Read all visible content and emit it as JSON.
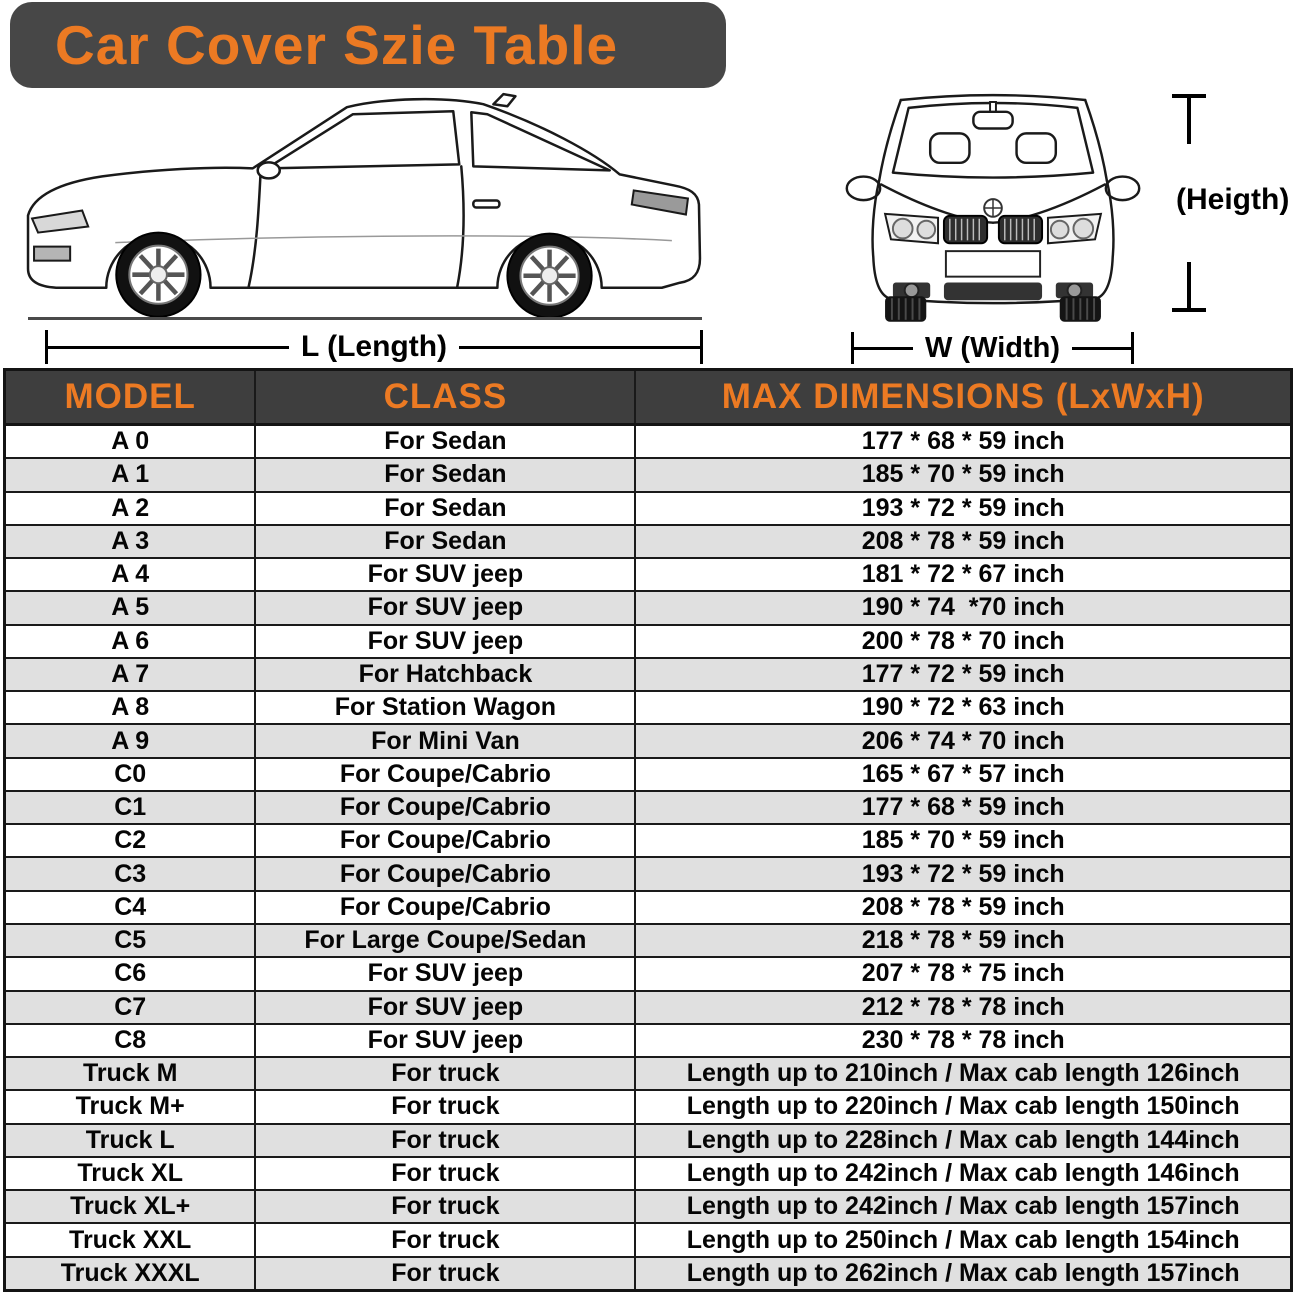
{
  "title": "Car Cover Szie Table",
  "diagram": {
    "side_car_icon": "car-side-view",
    "front_car_icon": "car-front-view",
    "length_label": "L (Length)",
    "width_label": "W (Width)",
    "height_label": "(Heigth)"
  },
  "colors": {
    "accent_orange": "#EC7A23",
    "title_bar_bg": "#474747",
    "table_header_bg": "#3E3E3E",
    "row_alt_bg": "#E0E0E0",
    "border": "#1a1a1a"
  },
  "table": {
    "headers": [
      "MODEL",
      "CLASS",
      "MAX DIMENSIONS (LxWxH)"
    ],
    "rows": [
      [
        "A 0",
        "For Sedan",
        "177 * 68 * 59 inch"
      ],
      [
        "A 1",
        "For Sedan",
        "185 * 70 * 59 inch"
      ],
      [
        "A 2",
        "For Sedan",
        "193 * 72 * 59 inch"
      ],
      [
        "A 3",
        "For Sedan",
        "208 * 78 * 59 inch"
      ],
      [
        "A 4",
        "For SUV jeep",
        "181 * 72 * 67 inch"
      ],
      [
        "A 5",
        "For SUV jeep",
        "190 * 74  *70 inch"
      ],
      [
        "A 6",
        "For SUV jeep",
        "200 * 78 * 70 inch"
      ],
      [
        "A 7",
        "For Hatchback",
        "177 * 72 * 59 inch"
      ],
      [
        "A 8",
        "For Station Wagon",
        "190 * 72 * 63 inch"
      ],
      [
        "A 9",
        "For Mini Van",
        "206 * 74 * 70 inch"
      ],
      [
        "C0",
        "For Coupe/Cabrio",
        "165 * 67 * 57 inch"
      ],
      [
        "C1",
        "For Coupe/Cabrio",
        "177 * 68 * 59 inch"
      ],
      [
        "C2",
        "For Coupe/Cabrio",
        "185 * 70 * 59 inch"
      ],
      [
        "C3",
        "For Coupe/Cabrio",
        "193 * 72 * 59 inch"
      ],
      [
        "C4",
        "For Coupe/Cabrio",
        "208 * 78 * 59 inch"
      ],
      [
        "C5",
        "For Large Coupe/Sedan",
        "218 * 78 * 59 inch"
      ],
      [
        "C6",
        "For SUV jeep",
        "207 * 78 * 75 inch"
      ],
      [
        "C7",
        "For SUV jeep",
        "212 * 78 * 78 inch"
      ],
      [
        "C8",
        "For SUV jeep",
        "230 * 78 * 78 inch"
      ],
      [
        "Truck M",
        "For truck",
        "Length up to 210inch / Max cab length 126inch"
      ],
      [
        "Truck M+",
        "For truck",
        "Length up to 220inch / Max cab length 150inch"
      ],
      [
        "Truck L",
        "For truck",
        "Length up to 228inch / Max cab length 144inch"
      ],
      [
        "Truck XL",
        "For truck",
        "Length up to 242inch / Max cab length 146inch"
      ],
      [
        "Truck XL+",
        "For truck",
        "Length up to 242inch / Max cab length 157inch"
      ],
      [
        "Truck XXL",
        "For truck",
        "Length up to 250inch / Max cab length 154inch"
      ],
      [
        "Truck XXXL",
        "For truck",
        "Length up to 262inch / Max cab length 157inch"
      ]
    ]
  }
}
